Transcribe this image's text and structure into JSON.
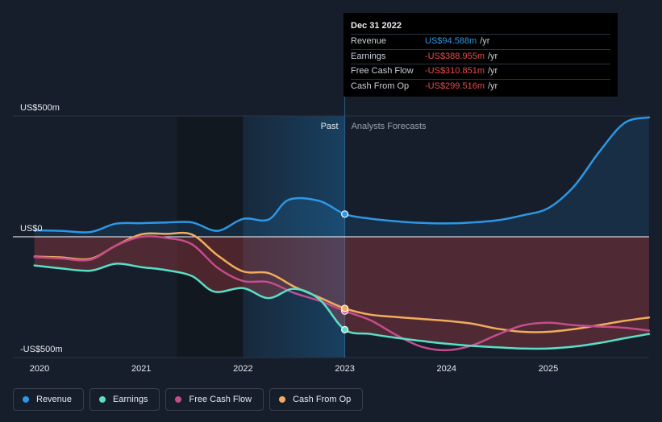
{
  "chart_data": {
    "type": "line",
    "y_axis_labels": [
      "US$500m",
      "US$0",
      "-US$500m"
    ],
    "ylim": [
      -500,
      500
    ],
    "x_ticks": [
      "2020",
      "2021",
      "2022",
      "2023",
      "2024",
      "2025"
    ],
    "region_labels": {
      "past": "Past",
      "forecast": "Analysts Forecasts"
    },
    "series": [
      {
        "name": "Revenue",
        "color": "#2d97e6",
        "points": [
          [
            2019.95,
            27
          ],
          [
            2020.2,
            25
          ],
          [
            2020.5,
            20
          ],
          [
            2020.75,
            55
          ],
          [
            2021.0,
            57
          ],
          [
            2021.25,
            60
          ],
          [
            2021.5,
            60
          ],
          [
            2021.75,
            25
          ],
          [
            2022.0,
            75
          ],
          [
            2022.25,
            72
          ],
          [
            2022.45,
            155
          ],
          [
            2022.75,
            150
          ],
          [
            2023.0,
            95
          ],
          [
            2023.25,
            76
          ],
          [
            2023.5,
            65
          ],
          [
            2023.75,
            58
          ],
          [
            2024.0,
            56
          ],
          [
            2024.25,
            60
          ],
          [
            2024.5,
            69
          ],
          [
            2024.75,
            90
          ],
          [
            2025.0,
            120
          ],
          [
            2025.25,
            210
          ],
          [
            2025.5,
            355
          ],
          [
            2025.75,
            477
          ],
          [
            2025.99,
            500
          ]
        ]
      },
      {
        "name": "Earnings",
        "color": "#58e0c6",
        "points": [
          [
            2019.95,
            -120
          ],
          [
            2020.2,
            -132
          ],
          [
            2020.5,
            -142
          ],
          [
            2020.75,
            -113
          ],
          [
            2021.0,
            -127
          ],
          [
            2021.25,
            -140
          ],
          [
            2021.5,
            -165
          ],
          [
            2021.72,
            -230
          ],
          [
            2022.0,
            -215
          ],
          [
            2022.25,
            -257
          ],
          [
            2022.5,
            -218
          ],
          [
            2022.75,
            -262
          ],
          [
            2023.0,
            -389
          ],
          [
            2023.25,
            -407
          ],
          [
            2023.5,
            -423
          ],
          [
            2023.75,
            -436
          ],
          [
            2024.0,
            -448
          ],
          [
            2024.25,
            -457
          ],
          [
            2024.5,
            -463
          ],
          [
            2024.75,
            -468
          ],
          [
            2025.0,
            -468
          ],
          [
            2025.25,
            -460
          ],
          [
            2025.5,
            -445
          ],
          [
            2025.75,
            -425
          ],
          [
            2025.99,
            -407
          ]
        ]
      },
      {
        "name": "Free Cash Flow",
        "color": "#c34d8c",
        "points": [
          [
            2019.95,
            -85
          ],
          [
            2020.2,
            -90
          ],
          [
            2020.5,
            -96
          ],
          [
            2020.75,
            -37
          ],
          [
            2021.0,
            0
          ],
          [
            2021.25,
            -5
          ],
          [
            2021.5,
            -32
          ],
          [
            2021.75,
            -130
          ],
          [
            2022.0,
            -185
          ],
          [
            2022.25,
            -190
          ],
          [
            2022.5,
            -235
          ],
          [
            2022.75,
            -268
          ],
          [
            2023.0,
            -311
          ],
          [
            2023.25,
            -349
          ],
          [
            2023.5,
            -410
          ],
          [
            2023.75,
            -460
          ],
          [
            2024.0,
            -475
          ],
          [
            2024.25,
            -455
          ],
          [
            2024.5,
            -410
          ],
          [
            2024.75,
            -371
          ],
          [
            2025.0,
            -360
          ],
          [
            2025.25,
            -370
          ],
          [
            2025.5,
            -376
          ],
          [
            2025.75,
            -381
          ],
          [
            2025.99,
            -393
          ]
        ]
      },
      {
        "name": "Cash From Op",
        "color": "#f2ac5c",
        "points": [
          [
            2019.95,
            -83
          ],
          [
            2020.2,
            -86
          ],
          [
            2020.5,
            -92
          ],
          [
            2020.75,
            -37
          ],
          [
            2021.0,
            10
          ],
          [
            2021.25,
            12
          ],
          [
            2021.5,
            9
          ],
          [
            2021.75,
            -78
          ],
          [
            2022.0,
            -145
          ],
          [
            2022.25,
            -152
          ],
          [
            2022.5,
            -208
          ],
          [
            2022.75,
            -254
          ],
          [
            2023.0,
            -300
          ],
          [
            2023.25,
            -326
          ],
          [
            2023.5,
            -336
          ],
          [
            2023.75,
            -344
          ],
          [
            2024.0,
            -352
          ],
          [
            2024.25,
            -364
          ],
          [
            2024.5,
            -385
          ],
          [
            2024.75,
            -398
          ],
          [
            2025.0,
            -398
          ],
          [
            2025.25,
            -387
          ],
          [
            2025.5,
            -370
          ],
          [
            2025.75,
            -352
          ],
          [
            2025.99,
            -338
          ]
        ]
      }
    ],
    "tooltip": {
      "date": "Dec 31 2022",
      "rows": [
        {
          "name": "Revenue",
          "value": "US$94.588m",
          "unit": "/yr",
          "color": "#2d97e6"
        },
        {
          "name": "Earnings",
          "value": "-US$388.955m",
          "unit": "/yr",
          "color": "#e64b4b"
        },
        {
          "name": "Free Cash Flow",
          "value": "-US$310.851m",
          "unit": "/yr",
          "color": "#e64b4b"
        },
        {
          "name": "Cash From Op",
          "value": "-US$299.516m",
          "unit": "/yr",
          "color": "#e64b4b"
        }
      ]
    },
    "legend": [
      {
        "name": "Revenue",
        "color": "#2d97e6"
      },
      {
        "name": "Earnings",
        "color": "#58e0c6"
      },
      {
        "name": "Free Cash Flow",
        "color": "#c34d8c"
      },
      {
        "name": "Cash From Op",
        "color": "#f2ac5c"
      }
    ]
  }
}
